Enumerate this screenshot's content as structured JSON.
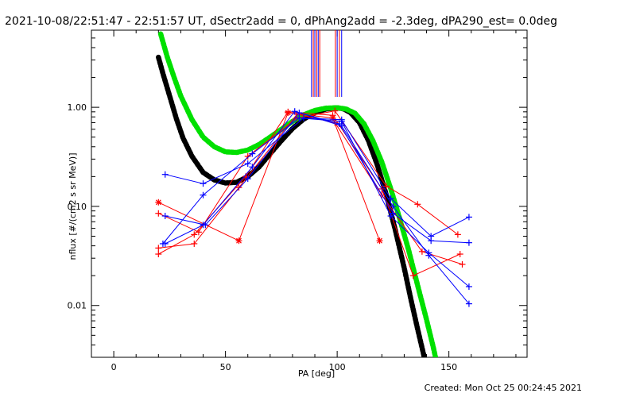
{
  "chart_data": {
    "type": "scatter",
    "title": "2021-10-08/22:51:47 - 22:51:57 UT, dSectr2add = 0, dPhAng2add = -2.3deg, dPA290_est=  0.0deg",
    "xlabel": "PA [deg]",
    "ylabel": "nflux [#/(cm2 s sr MeV)]",
    "footer": "Created: Mon Oct 25 00:24:45 2021",
    "xlim": [
      -10,
      185
    ],
    "ylim": [
      0.003,
      6.0
    ],
    "yscale": "log",
    "grid": false,
    "x_ticks": [
      0,
      50,
      100,
      150
    ],
    "x_tick_labels": [
      "0",
      "50",
      "100",
      "150"
    ],
    "y_ticks": [
      0.01,
      0.1,
      1.0
    ],
    "y_tick_labels": [
      "0.01",
      "0.10",
      "1.00"
    ],
    "colors": {
      "red": "#ff0000",
      "blue": "#0000ff",
      "black": "#000000",
      "green": "#00e000"
    },
    "vertical_markers": [
      {
        "x": 88.5,
        "color": "#0000ff"
      },
      {
        "x": 89.3,
        "color": "#ff0000"
      },
      {
        "x": 90.0,
        "color": "#0000ff"
      },
      {
        "x": 90.8,
        "color": "#ff0000"
      },
      {
        "x": 91.5,
        "color": "#0000ff"
      },
      {
        "x": 92.2,
        "color": "#ff0000"
      },
      {
        "x": 99.2,
        "color": "#ff0000"
      },
      {
        "x": 100.0,
        "color": "#0000ff"
      },
      {
        "x": 101.0,
        "color": "#ff0000"
      },
      {
        "x": 102.0,
        "color": "#0000ff"
      }
    ],
    "series": [
      {
        "color": "#ff0000",
        "marker": "+",
        "points": [
          [
            20,
            0.033
          ],
          [
            36,
            0.052
          ],
          [
            59,
            0.2
          ],
          [
            78,
            0.9
          ],
          [
            98,
            0.83
          ],
          [
            120,
            0.15
          ],
          [
            134,
            0.02
          ],
          [
            155,
            0.033
          ]
        ]
      },
      {
        "color": "#ff0000",
        "marker": "+",
        "points": [
          [
            20,
            0.038
          ],
          [
            36,
            0.042
          ],
          [
            56,
            0.155
          ],
          [
            82,
            0.85
          ],
          [
            99,
            0.7
          ],
          [
            120,
            0.13
          ],
          [
            138,
            0.035
          ],
          [
            156,
            0.026
          ]
        ]
      },
      {
        "color": "#ff0000",
        "marker": "+",
        "points": [
          [
            20,
            0.085
          ],
          [
            38,
            0.055
          ],
          [
            60,
            0.32
          ],
          [
            82,
            0.78
          ],
          [
            99,
            0.92
          ],
          [
            122,
            0.16
          ],
          [
            136,
            0.105
          ],
          [
            154,
            0.052
          ]
        ]
      },
      {
        "color": "#ff0000",
        "marker": "*",
        "points": [
          [
            20,
            0.11
          ],
          [
            56,
            0.045
          ],
          [
            78,
            0.88
          ],
          [
            98,
            0.78
          ],
          [
            119,
            0.045
          ]
        ]
      },
      {
        "color": "#0000ff",
        "marker": "+",
        "points": [
          [
            23,
            0.042
          ],
          [
            40,
            0.065
          ],
          [
            62,
            0.25
          ],
          [
            81,
            0.91
          ],
          [
            102,
            0.65
          ],
          [
            125,
            0.1
          ],
          [
            141,
            0.032
          ],
          [
            159,
            0.0104
          ]
        ]
      },
      {
        "color": "#0000ff",
        "marker": "+",
        "points": [
          [
            22,
            0.042
          ],
          [
            40,
            0.13
          ],
          [
            62,
            0.34
          ],
          [
            83,
            0.78
          ],
          [
            102,
            0.72
          ],
          [
            124,
            0.08
          ],
          [
            141,
            0.034
          ],
          [
            159,
            0.0155
          ]
        ]
      },
      {
        "color": "#0000ff",
        "marker": "+",
        "points": [
          [
            23,
            0.08
          ],
          [
            41,
            0.065
          ],
          [
            60,
            0.19
          ],
          [
            83,
            0.88
          ],
          [
            101,
            0.68
          ],
          [
            125,
            0.085
          ],
          [
            142,
            0.045
          ],
          [
            159,
            0.043
          ]
        ]
      },
      {
        "color": "#0000ff",
        "marker": "+",
        "points": [
          [
            23,
            0.21
          ],
          [
            40,
            0.17
          ],
          [
            60,
            0.27
          ],
          [
            85,
            0.78
          ],
          [
            102,
            0.75
          ],
          [
            124,
            0.12
          ],
          [
            142,
            0.05
          ],
          [
            159,
            0.078
          ]
        ]
      }
    ],
    "model_curves": [
      {
        "color": "#000000",
        "points": [
          [
            20,
            3.2
          ],
          [
            22,
            2.2
          ],
          [
            25,
            1.3
          ],
          [
            28,
            0.77
          ],
          [
            31,
            0.49
          ],
          [
            35,
            0.32
          ],
          [
            40,
            0.22
          ],
          [
            45,
            0.185
          ],
          [
            50,
            0.172
          ],
          [
            55,
            0.175
          ],
          [
            60,
            0.2
          ],
          [
            65,
            0.25
          ],
          [
            70,
            0.34
          ],
          [
            75,
            0.46
          ],
          [
            80,
            0.61
          ],
          [
            85,
            0.76
          ],
          [
            90,
            0.88
          ],
          [
            95,
            0.96
          ],
          [
            100,
            0.99
          ],
          [
            103,
            0.96
          ],
          [
            106,
            0.88
          ],
          [
            110,
            0.7
          ],
          [
            114,
            0.46
          ],
          [
            118,
            0.26
          ],
          [
            122,
            0.13
          ],
          [
            126,
            0.058
          ],
          [
            130,
            0.024
          ],
          [
            133,
            0.0115
          ],
          [
            136,
            0.0058
          ],
          [
            139,
            0.003
          ]
        ]
      },
      {
        "color": "#00e000",
        "points": [
          [
            21,
            5.5
          ],
          [
            24,
            3.2
          ],
          [
            27,
            2.0
          ],
          [
            30,
            1.3
          ],
          [
            35,
            0.75
          ],
          [
            40,
            0.5
          ],
          [
            45,
            0.4
          ],
          [
            50,
            0.355
          ],
          [
            55,
            0.35
          ],
          [
            60,
            0.37
          ],
          [
            65,
            0.42
          ],
          [
            70,
            0.5
          ],
          [
            75,
            0.6
          ],
          [
            80,
            0.72
          ],
          [
            85,
            0.84
          ],
          [
            90,
            0.93
          ],
          [
            95,
            0.98
          ],
          [
            100,
            0.99
          ],
          [
            104,
            0.96
          ],
          [
            108,
            0.87
          ],
          [
            112,
            0.68
          ],
          [
            116,
            0.46
          ],
          [
            120,
            0.28
          ],
          [
            124,
            0.15
          ],
          [
            128,
            0.075
          ],
          [
            132,
            0.036
          ],
          [
            136,
            0.016
          ],
          [
            140,
            0.0072
          ],
          [
            143,
            0.0038
          ],
          [
            144,
            0.003
          ]
        ]
      }
    ]
  }
}
